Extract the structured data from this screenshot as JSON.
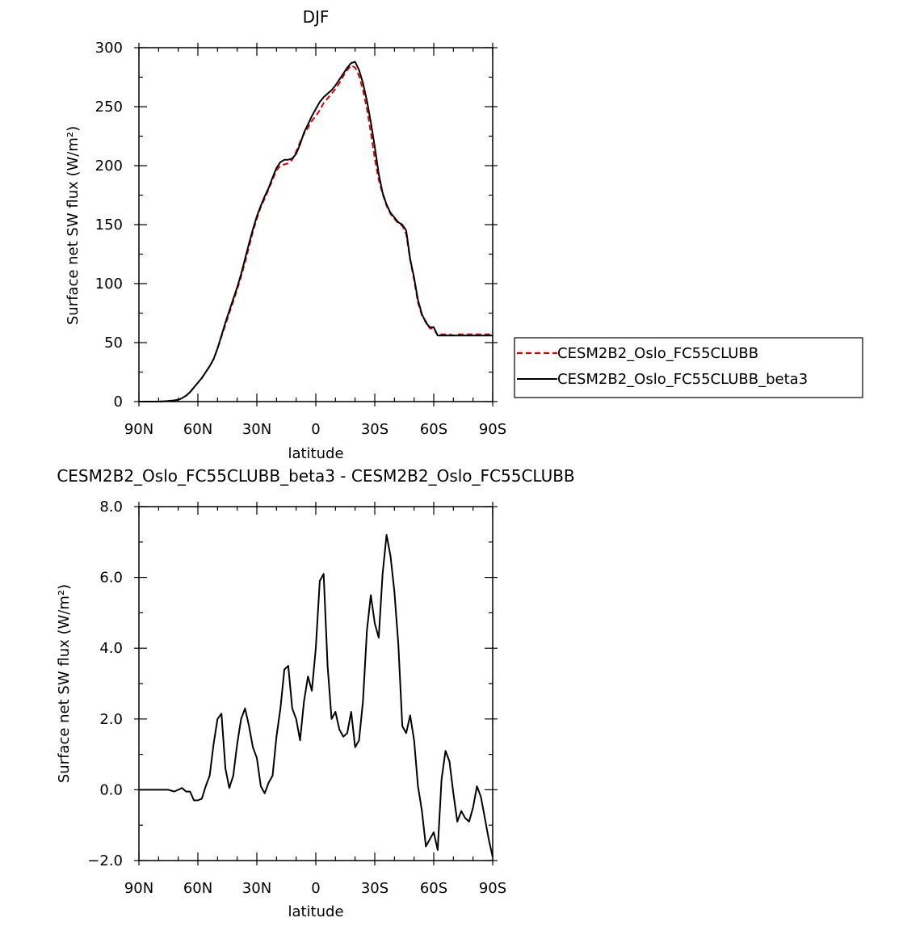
{
  "chart_data": [
    {
      "type": "line",
      "title": "DJF",
      "xlabel": "latitude",
      "ylabel": "Surface net SW flux (W/m²)",
      "xlim": [
        -90,
        90
      ],
      "ylim": [
        0,
        300
      ],
      "x_ticks": [
        {
          "value": -90,
          "label": "90N"
        },
        {
          "value": -60,
          "label": "60N"
        },
        {
          "value": -30,
          "label": "30N"
        },
        {
          "value": 0,
          "label": "0"
        },
        {
          "value": 30,
          "label": "30S"
        },
        {
          "value": 60,
          "label": "60S"
        },
        {
          "value": 90,
          "label": "90S"
        }
      ],
      "y_ticks": [
        {
          "value": 0,
          "label": "0"
        },
        {
          "value": 50,
          "label": "50"
        },
        {
          "value": 100,
          "label": "100"
        },
        {
          "value": 150,
          "label": "150"
        },
        {
          "value": 200,
          "label": "200"
        },
        {
          "value": 250,
          "label": "250"
        },
        {
          "value": 300,
          "label": "300"
        }
      ],
      "legend_placement": "right",
      "series": [
        {
          "name": "CESM2B2_Oslo_FC55CLUBB",
          "color": "#e00000",
          "dash": true,
          "x": [
            -90,
            -85,
            -80,
            -75,
            -72,
            -70,
            -68,
            -66,
            -64,
            -62,
            -60,
            -58,
            -56,
            -54,
            -52,
            -50,
            -48,
            -46,
            -44,
            -42,
            -40,
            -38,
            -36,
            -34,
            -32,
            -30,
            -28,
            -26,
            -24,
            -22,
            -20,
            -18,
            -16,
            -14,
            -12,
            -10,
            -8,
            -6,
            -4,
            -2,
            0,
            2,
            4,
            6,
            8,
            10,
            12,
            14,
            16,
            18,
            20,
            22,
            24,
            26,
            28,
            30,
            32,
            34,
            36,
            38,
            40,
            42,
            44,
            46,
            48,
            50,
            52,
            54,
            56,
            58,
            60,
            62,
            64,
            66,
            68,
            70,
            72,
            74,
            76,
            78,
            80,
            82,
            84,
            86,
            88,
            90
          ],
          "y": [
            0,
            0,
            0,
            0.5,
            1,
            1.5,
            3,
            5,
            8,
            12,
            16,
            20,
            25,
            30,
            36,
            45,
            55,
            65,
            75,
            85,
            95,
            106,
            118,
            131,
            144,
            155,
            165,
            172,
            180,
            188,
            196,
            200,
            201,
            202,
            205,
            212,
            220,
            227,
            232,
            238,
            242,
            247,
            253,
            257,
            261,
            265,
            270,
            276,
            281,
            285,
            283,
            276,
            264,
            248,
            228,
            206,
            188,
            176,
            166,
            159,
            155,
            151,
            149,
            142,
            120,
            103,
            84,
            73,
            68,
            62,
            62,
            56,
            57,
            57,
            57,
            56,
            57,
            57,
            57,
            57,
            57,
            57,
            57,
            57,
            57,
            57
          ]
        },
        {
          "name": "CESM2B2_Oslo_FC55CLUBB_beta3",
          "color": "#000000",
          "dash": false,
          "x": [
            -90,
            -85,
            -80,
            -75,
            -72,
            -70,
            -68,
            -66,
            -64,
            -62,
            -60,
            -58,
            -56,
            -54,
            -52,
            -50,
            -48,
            -46,
            -44,
            -42,
            -40,
            -38,
            -36,
            -34,
            -32,
            -30,
            -28,
            -26,
            -24,
            -22,
            -20,
            -18,
            -16,
            -14,
            -12,
            -10,
            -8,
            -6,
            -4,
            -2,
            0,
            2,
            4,
            6,
            8,
            10,
            12,
            14,
            16,
            18,
            20,
            22,
            24,
            26,
            28,
            30,
            32,
            34,
            36,
            38,
            40,
            42,
            44,
            46,
            48,
            50,
            52,
            54,
            56,
            58,
            60,
            62,
            64,
            66,
            68,
            70,
            72,
            74,
            76,
            78,
            80,
            82,
            84,
            86,
            88,
            90
          ],
          "y": [
            0,
            0,
            0,
            0.5,
            1,
            1.5,
            3,
            5,
            8,
            12,
            16,
            20,
            25,
            30,
            36,
            45,
            56,
            67,
            77,
            87,
            97,
            108,
            121,
            134,
            146,
            157,
            166,
            174,
            181,
            190,
            198,
            203,
            205,
            205,
            206,
            210,
            218,
            228,
            235,
            242,
            248,
            254,
            258,
            261,
            264,
            268,
            273,
            278,
            283,
            287,
            288,
            281,
            270,
            255,
            237,
            216,
            193,
            177,
            167,
            160,
            156,
            152,
            150,
            145,
            121,
            105,
            86,
            74,
            67,
            63,
            63,
            56,
            56,
            56,
            56,
            56,
            56,
            56,
            56,
            56,
            56,
            56,
            56,
            56,
            56,
            56
          ]
        }
      ]
    },
    {
      "type": "line",
      "title": "CESM2B2_Oslo_FC55CLUBB_beta3 - CESM2B2_Oslo_FC55CLUBB",
      "xlabel": "latitude",
      "ylabel": "Surface net SW flux (W/m²)",
      "xlim": [
        -90,
        90
      ],
      "ylim": [
        -2.0,
        8.0
      ],
      "x_ticks": [
        {
          "value": -90,
          "label": "90N"
        },
        {
          "value": -60,
          "label": "60N"
        },
        {
          "value": -30,
          "label": "30N"
        },
        {
          "value": 0,
          "label": "0"
        },
        {
          "value": 30,
          "label": "30S"
        },
        {
          "value": 60,
          "label": "60S"
        },
        {
          "value": 90,
          "label": "90S"
        }
      ],
      "y_ticks": [
        {
          "value": -2.0,
          "label": "−2.0"
        },
        {
          "value": 0.0,
          "label": "0.0"
        },
        {
          "value": 2.0,
          "label": "2.0"
        },
        {
          "value": 4.0,
          "label": "4.0"
        },
        {
          "value": 6.0,
          "label": "6.0"
        },
        {
          "value": 8.0,
          "label": "8.0"
        }
      ],
      "series": [
        {
          "color": "#000000",
          "dash": false,
          "x": [
            -90,
            -85,
            -80,
            -75,
            -72,
            -70,
            -68,
            -66,
            -64,
            -62,
            -60,
            -58,
            -56,
            -54,
            -52,
            -50,
            -48,
            -46,
            -44,
            -42,
            -40,
            -38,
            -36,
            -34,
            -32,
            -30,
            -28,
            -26,
            -24,
            -22,
            -20,
            -18,
            -16,
            -14,
            -12,
            -10,
            -8,
            -6,
            -4,
            -2,
            0,
            2,
            4,
            6,
            8,
            10,
            12,
            14,
            16,
            18,
            20,
            22,
            24,
            26,
            28,
            30,
            32,
            34,
            36,
            38,
            40,
            42,
            44,
            46,
            48,
            50,
            52,
            54,
            56,
            58,
            60,
            62,
            64,
            66,
            68,
            70,
            72,
            74,
            76,
            78,
            80,
            82,
            84,
            86,
            88,
            90
          ],
          "y": [
            0,
            0,
            0,
            0,
            -0.05,
            0,
            0.05,
            -0.05,
            -0.05,
            -0.3,
            -0.3,
            -0.25,
            0.1,
            0.4,
            1.3,
            2.0,
            2.15,
            0.6,
            0.05,
            0.4,
            1.3,
            2.0,
            2.3,
            1.8,
            1.2,
            0.9,
            0.1,
            -0.1,
            0.2,
            0.4,
            1.5,
            2.3,
            3.4,
            3.5,
            2.3,
            2.0,
            1.4,
            2.5,
            3.2,
            2.8,
            4.0,
            5.9,
            6.1,
            3.5,
            2.0,
            2.2,
            1.7,
            1.5,
            1.6,
            2.2,
            1.2,
            1.4,
            2.5,
            4.5,
            5.5,
            4.7,
            4.3,
            6.1,
            7.2,
            6.6,
            5.6,
            4.1,
            1.8,
            1.6,
            2.1,
            1.4,
            0.1,
            -0.6,
            -1.6,
            -1.4,
            -1.2,
            -1.7,
            0.3,
            1.1,
            0.8,
            -0.1,
            -0.9,
            -0.6,
            -0.8,
            -0.9,
            -0.5,
            0.1,
            -0.2,
            -0.8,
            -1.4,
            -1.9
          ]
        }
      ]
    }
  ]
}
